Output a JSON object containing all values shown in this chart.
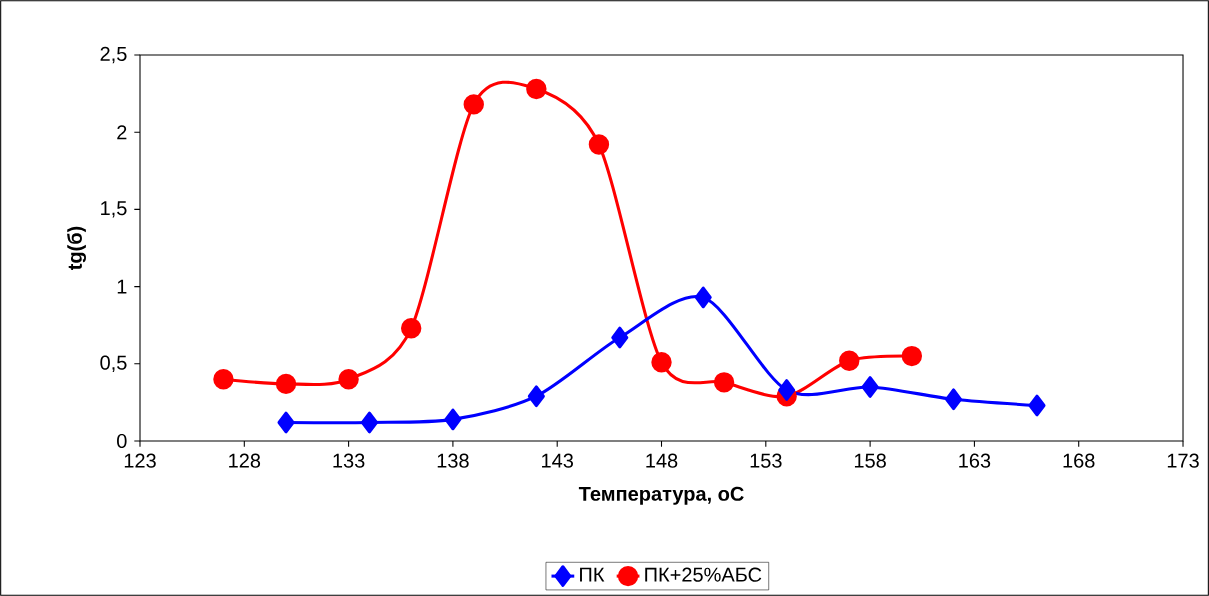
{
  "chart_data": {
    "type": "line",
    "xlabel": "Температура, оС",
    "ylabel": "tg(б)",
    "xlim": [
      123,
      173
    ],
    "xticks": [
      123,
      128,
      133,
      138,
      143,
      148,
      153,
      158,
      163,
      168,
      173
    ],
    "ylim": [
      0,
      2.5
    ],
    "yticks": [
      0,
      {
        "value": 0.5,
        "label": "0,5"
      },
      1,
      {
        "value": 1.5,
        "label": "1,5"
      },
      2,
      {
        "value": 2.5,
        "label": "2,5"
      }
    ],
    "legend": "bottom",
    "line_style": "solid",
    "series": [
      {
        "name": "ПК",
        "color": "#0000ff",
        "marker": "diamond",
        "x": [
          130,
          134,
          138,
          142,
          146,
          150,
          154,
          158,
          162,
          166
        ],
        "values": [
          0.12,
          0.12,
          0.14,
          0.29,
          0.67,
          0.93,
          0.33,
          0.35,
          0.27,
          0.23
        ]
      },
      {
        "name": "ПК+25%АБС",
        "color": "#ff0000",
        "marker": "circle",
        "x": [
          127,
          130,
          133,
          136,
          139,
          142,
          145,
          148,
          151,
          154,
          157,
          160
        ],
        "values": [
          0.4,
          0.37,
          0.4,
          0.73,
          2.18,
          2.28,
          1.92,
          0.51,
          0.38,
          0.29,
          0.52,
          0.55
        ]
      }
    ]
  }
}
